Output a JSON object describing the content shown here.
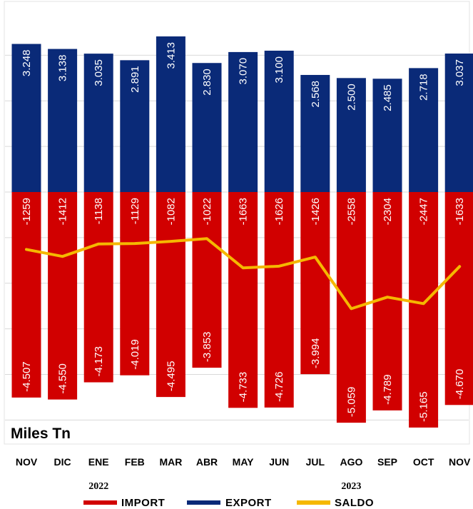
{
  "chart_data": {
    "type": "bar",
    "categories": [
      "NOV",
      "DIC",
      "ENE",
      "FEB",
      "MAR",
      "ABR",
      "MAY",
      "JUN",
      "JUL",
      "AGO",
      "SEP",
      "OCT",
      "NOV"
    ],
    "series": [
      {
        "name": "EXPORT",
        "color": "#0a2a78",
        "values": [
          3248,
          3138,
          3035,
          2891,
          3413,
          2830,
          3070,
          3100,
          2568,
          2500,
          2485,
          2718,
          3037
        ],
        "labels": [
          "3.248",
          "3.138",
          "3.035",
          "2.891",
          "3.413",
          "2.830",
          "3.070",
          "3.100",
          "2.568",
          "2.500",
          "2.485",
          "2.718",
          "3.037"
        ]
      },
      {
        "name": "IMPORT",
        "color": "#d10000",
        "values": [
          -4507,
          -4550,
          -4173,
          -4019,
          -4495,
          -3853,
          -4733,
          -4726,
          -3994,
          -5059,
          -4789,
          -5165,
          -4670
        ],
        "labels": [
          "-4.507",
          "-4.550",
          "-4.173",
          "-4.019",
          "-4.495",
          "-3.853",
          "-4.733",
          "-4.726",
          "-3.994",
          "-5.059",
          "-4.789",
          "-5.165",
          "-4.670"
        ]
      },
      {
        "name": "SALDO",
        "color": "#f5b800",
        "values": [
          -1259,
          -1412,
          -1138,
          -1129,
          -1082,
          -1022,
          -1663,
          -1626,
          -1426,
          -2558,
          -2304,
          -2447,
          -1633
        ],
        "labels": [
          "-1259",
          "-1412",
          "-1138",
          "-1129",
          "-1082",
          "-1022",
          "-1663",
          "-1626",
          "-1426",
          "-2558",
          "-2304",
          "-2447",
          "-1633"
        ]
      }
    ],
    "year_labels": [
      {
        "text": "2022",
        "category_index": 2
      },
      {
        "text": "2023",
        "category_index": 9
      }
    ],
    "unit_label": "Miles Tn",
    "ylim": [
      -5165,
      3413
    ],
    "grid": true,
    "legend": {
      "placement": "bottom",
      "entries": [
        "IMPORT",
        "EXPORT",
        "SALDO"
      ]
    }
  }
}
